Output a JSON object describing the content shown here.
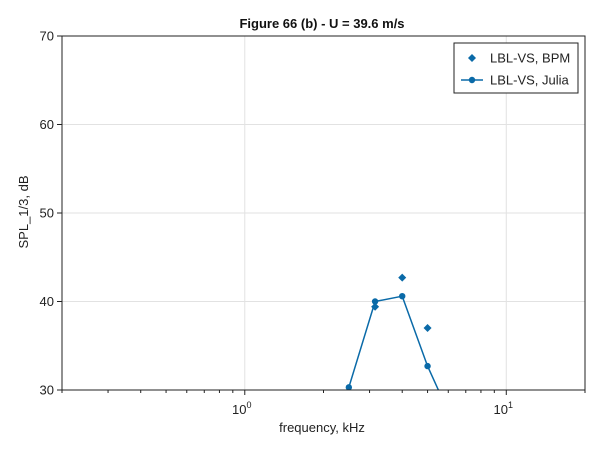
{
  "chart_data": {
    "type": "line",
    "title": "Figure 66 (b) - U = 39.6 m/s",
    "xlabel": "frequency, kHz",
    "ylabel": "SPL_1/3, dB",
    "xscale": "log",
    "xlim": [
      0.2,
      20
    ],
    "ylim": [
      30,
      70
    ],
    "grid": true,
    "legend_position": "top-right",
    "y_ticks": [
      {
        "value": 30,
        "label": "30"
      },
      {
        "value": 40,
        "label": "40"
      },
      {
        "value": 50,
        "label": "50"
      },
      {
        "value": 60,
        "label": "60"
      },
      {
        "value": 70,
        "label": "70"
      }
    ],
    "x_ticks": [
      {
        "value": 1,
        "base": "10",
        "exp": "0"
      },
      {
        "value": 10,
        "base": "10",
        "exp": "1"
      }
    ],
    "series": [
      {
        "name": "LBL-VS, BPM",
        "style": "markers",
        "marker": "diamond",
        "color": "#0a6aa8",
        "x": [
          3.15,
          4.0,
          5.0
        ],
        "y": [
          39.4,
          42.7,
          37.0
        ]
      },
      {
        "name": "LBL-VS, Julia",
        "style": "line+markers",
        "marker": "circle",
        "color": "#0a6aa8",
        "x": [
          2.5,
          3.15,
          4.0,
          5.0,
          5.5
        ],
        "y": [
          30.3,
          40.0,
          40.6,
          32.7,
          30.0
        ],
        "marker_count": 4
      }
    ]
  }
}
